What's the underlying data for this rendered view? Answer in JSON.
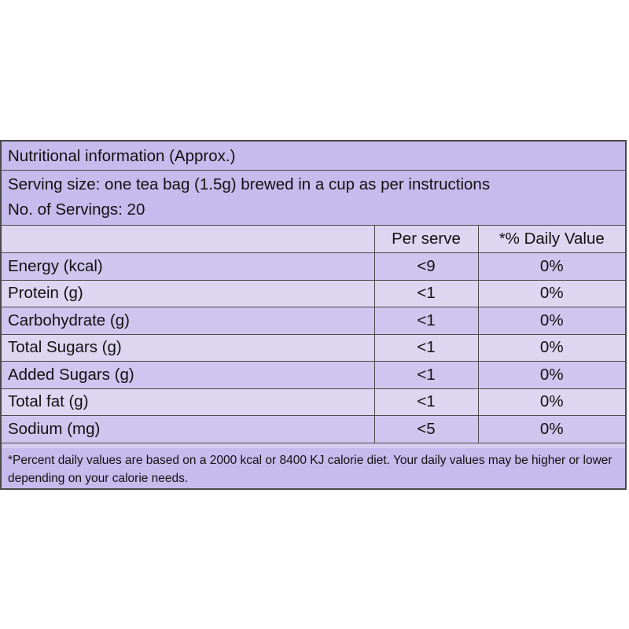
{
  "title": "Nutritional information (Approx.)",
  "serving": {
    "size_line": "Serving size: one tea bag (1.5g) brewed in a cup as per instructions",
    "count_line": "No. of Servings: 20"
  },
  "table": {
    "headers": [
      "",
      "Per serve",
      "*% Daily Value"
    ],
    "rows": [
      {
        "name": "Energy (kcal)",
        "per_serve": "<9",
        "daily": "0%"
      },
      {
        "name": "Protein (g)",
        "per_serve": "<1",
        "daily": "0%"
      },
      {
        "name": "Carbohydrate (g)",
        "per_serve": "<1",
        "daily": "0%"
      },
      {
        "name": "Total Sugars (g)",
        "per_serve": "<1",
        "daily": "0%"
      },
      {
        "name": "Added Sugars (g)",
        "per_serve": "<1",
        "daily": "0%"
      },
      {
        "name": "Total fat (g)",
        "per_serve": "<1",
        "daily": "0%"
      },
      {
        "name": "Sodium (mg)",
        "per_serve": "<5",
        "daily": "0%"
      }
    ]
  },
  "footnote": "*Percent daily values are based on a 2000 kcal or 8400 KJ calorie diet. Your daily values may be higher or lower depending on your calorie needs.",
  "colors": {
    "header_band": "#c6bbec",
    "row_light": "#dcd6f1",
    "row_dark": "#cec6ee",
    "border": "#4a4a4a"
  }
}
